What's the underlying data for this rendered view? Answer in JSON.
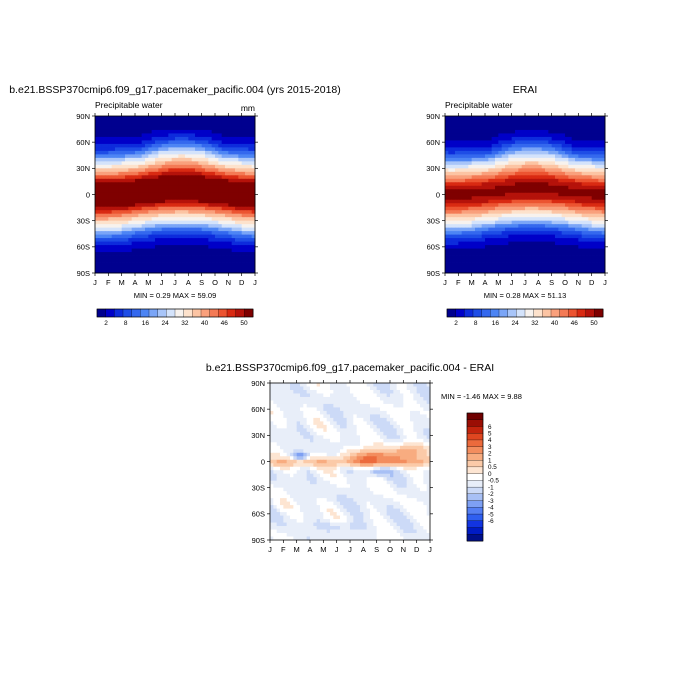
{
  "colors": {
    "abs_levels": [
      "#00008f",
      "#0000c8",
      "#0d2bdc",
      "#1e4de6",
      "#3468ee",
      "#4d85f4",
      "#7aa5f7",
      "#a8c5f9",
      "#d4e3fb",
      "#f7f2ee",
      "#fde2cc",
      "#fcc4a3",
      "#f9a07c",
      "#f47a55",
      "#ec5431",
      "#d92a12",
      "#b5120a",
      "#7f0000"
    ],
    "diff_levels": [
      "#000f8a",
      "#001bc4",
      "#1234e1",
      "#2f5ff0",
      "#557ff3",
      "#7ea0f3",
      "#a8c0f5",
      "#ccdaf7",
      "#e8eef9",
      "#ffffff",
      "#fde5d2",
      "#fbcaa8",
      "#f8ac80",
      "#f38d5e",
      "#ec6a3c",
      "#df4620",
      "#c3240d",
      "#9b0e04",
      "#6f0000"
    ]
  },
  "chart_data": [
    {
      "type": "heatmap",
      "title": "b.e21.BSSP370cmip6.f09_g17.pacemaker_pacific.004 (yrs 2015-2018)",
      "left_string": "Precipitable water",
      "right_string": "mm",
      "x_ticks": [
        "J",
        "F",
        "M",
        "A",
        "M",
        "J",
        "J",
        "A",
        "S",
        "O",
        "N",
        "D",
        "J"
      ],
      "y_ticks": [
        "90N",
        "60N",
        "30N",
        "0",
        "30S",
        "60S",
        "90S"
      ],
      "ylim": [
        -90,
        90
      ],
      "stats": "MIN =   0.29 MAX =  59.09",
      "min": 0.29,
      "max": 59.09,
      "field": {
        "kind": "abs",
        "peak": 59,
        "eq_amp": 3.8,
        "nh_amp": 6,
        "sh_amp": 1.5,
        "width": 24
      },
      "colorbar": {
        "orientation": "horizontal",
        "labels": [
          "2",
          "8",
          "16",
          "24",
          "32",
          "40",
          "46",
          "50"
        ]
      },
      "levels": [
        2,
        4,
        6,
        8,
        10,
        12,
        14,
        16,
        20,
        24,
        28,
        32,
        36,
        40,
        43,
        46,
        50
      ]
    },
    {
      "type": "heatmap",
      "title": "ERAI",
      "left_string": "Precipitable water",
      "right_string": "",
      "x_ticks": [
        "J",
        "F",
        "M",
        "A",
        "M",
        "J",
        "J",
        "A",
        "S",
        "O",
        "N",
        "D",
        "J"
      ],
      "y_ticks": [
        "90N",
        "60N",
        "30N",
        "0",
        "30S",
        "60S",
        "90S"
      ],
      "ylim": [
        -90,
        90
      ],
      "stats": "MIN =   0.28 MAX =  51.13",
      "min": 0.28,
      "max": 51.13,
      "field": {
        "kind": "abs",
        "peak": 51,
        "eq_amp": 3.5,
        "nh_amp": 6,
        "sh_amp": 1.5,
        "width": 23
      },
      "colorbar": {
        "orientation": "horizontal",
        "labels": [
          "2",
          "8",
          "16",
          "24",
          "32",
          "40",
          "46",
          "50"
        ]
      },
      "levels": [
        2,
        4,
        6,
        8,
        10,
        12,
        14,
        16,
        20,
        24,
        28,
        32,
        36,
        40,
        43,
        46,
        50
      ]
    },
    {
      "type": "heatmap",
      "title": "b.e21.BSSP370cmip6.f09_g17.pacemaker_pacific.004 - ERAI",
      "x_ticks": [
        "J",
        "F",
        "M",
        "A",
        "M",
        "J",
        "J",
        "A",
        "S",
        "O",
        "N",
        "D",
        "J"
      ],
      "y_ticks": [
        "90N",
        "60N",
        "30N",
        "0",
        "30S",
        "60S",
        "90S"
      ],
      "ylim": [
        -90,
        90
      ],
      "stats": "MIN =  -1.46 MAX =   9.88",
      "min": -1.46,
      "max": 9.88,
      "field": {
        "kind": "diff"
      },
      "colorbar": {
        "orientation": "vertical",
        "labels": [
          "6",
          "5",
          "4",
          "3",
          "2",
          "1",
          "0.5",
          "0",
          "-0.5",
          "-1",
          "-2",
          "-3",
          "-4",
          "-5",
          "-6"
        ]
      },
      "levels": [
        -6,
        -5,
        -4,
        -3,
        -2,
        -1,
        -0.5,
        0,
        0.5,
        1,
        2,
        3,
        4,
        5,
        6
      ]
    }
  ]
}
